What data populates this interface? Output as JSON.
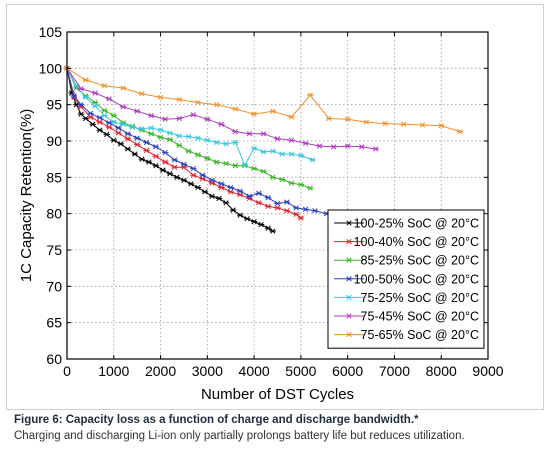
{
  "figure": {
    "caption_title": "Figure 6: Capacity loss as a function of charge and discharge bandwidth.*",
    "caption_text": "Charging and discharging Li-ion only partially prolongs battery life but reduces utilization."
  },
  "chart_data": {
    "type": "line",
    "title": "",
    "xlabel": "Number of DST Cycles",
    "ylabel": "1C Capacity Retention(%)",
    "xlim": [
      0,
      9000
    ],
    "ylim": [
      60,
      105
    ],
    "xticks": [
      0,
      1000,
      2000,
      3000,
      4000,
      5000,
      6000,
      7000,
      8000,
      9000
    ],
    "yticks": [
      60,
      65,
      70,
      75,
      80,
      85,
      90,
      95,
      100,
      105
    ],
    "grid": true,
    "legend_position": "bottom-right",
    "series": [
      {
        "name": "100-25% SoC @ 20°C",
        "color": "#000000",
        "marker": "asterisk",
        "x": [
          0,
          100,
          200,
          300,
          400,
          550,
          700,
          850,
          1000,
          1150,
          1300,
          1450,
          1600,
          1750,
          1900,
          2050,
          2200,
          2350,
          2500,
          2650,
          2800,
          2950,
          3100,
          3250,
          3400,
          3550,
          3700,
          3850,
          4000,
          4150,
          4300,
          4400
        ],
        "y": [
          100,
          96.6,
          95,
          93.7,
          93.1,
          92.3,
          91.5,
          90.9,
          90.1,
          89.6,
          88.9,
          88.2,
          87.5,
          87.1,
          86.6,
          86,
          85.5,
          85,
          84.6,
          84.1,
          83.6,
          83,
          82.4,
          82.1,
          81.5,
          80.5,
          79.8,
          79.3,
          78.9,
          78.5,
          78,
          77.6
        ]
      },
      {
        "name": "100-40% SoC @ 20°C",
        "color": "#e8202a",
        "marker": "asterisk",
        "x": [
          0,
          150,
          300,
          500,
          700,
          900,
          1100,
          1300,
          1500,
          1700,
          1900,
          2100,
          2300,
          2500,
          2700,
          2900,
          3100,
          3300,
          3500,
          3700,
          3900,
          4100,
          4300,
          4500,
          4700,
          4900,
          5000
        ],
        "y": [
          100,
          96,
          94.7,
          93.3,
          92.6,
          91.9,
          91.1,
          90.3,
          89.5,
          88.7,
          87.9,
          87.1,
          86.4,
          86.4,
          85.3,
          84.8,
          84.2,
          83.6,
          83,
          82.6,
          82.1,
          81.5,
          81,
          80.8,
          80.4,
          79.9,
          79.4
        ]
      },
      {
        "name": "85-25% SoC @ 20°C",
        "color": "#3cb52a",
        "marker": "asterisk",
        "x": [
          0,
          200,
          400,
          600,
          800,
          1000,
          1200,
          1400,
          1600,
          1800,
          2000,
          2200,
          2400,
          2600,
          2800,
          3000,
          3200,
          3400,
          3600,
          3800,
          4000,
          4200,
          4400,
          4600,
          4800,
          5000,
          5200
        ],
        "y": [
          100,
          97.3,
          96.2,
          95.3,
          94.2,
          93.5,
          92.5,
          92,
          91.5,
          91,
          90.5,
          90.2,
          89.4,
          88.6,
          88.1,
          87.6,
          87.1,
          86.9,
          86.6,
          86.6,
          86.2,
          85.8,
          85,
          84.7,
          84.2,
          84,
          83.5
        ]
      },
      {
        "name": "100-50% SoC @ 20°C",
        "color": "#2a3fbf",
        "marker": "asterisk",
        "x": [
          0,
          150,
          300,
          500,
          700,
          900,
          1100,
          1300,
          1500,
          1700,
          1900,
          2100,
          2300,
          2500,
          2700,
          2900,
          3100,
          3300,
          3500,
          3700,
          3900,
          4100,
          4300,
          4500,
          4700,
          4900,
          5100,
          5300,
          5550
        ],
        "y": [
          100,
          96.2,
          95,
          93.8,
          93.2,
          92.5,
          91.8,
          91,
          90.4,
          89.8,
          89.2,
          88.4,
          87.4,
          86.8,
          86.2,
          85.3,
          84.6,
          84.1,
          83.6,
          83.1,
          82.4,
          82.8,
          82.2,
          81.4,
          81.6,
          80.8,
          80.6,
          80.4,
          80
        ]
      },
      {
        "name": "75-25% SoC @ 20°C",
        "color": "#39c9e0",
        "marker": "asterisk",
        "x": [
          0,
          200,
          400,
          600,
          800,
          1000,
          1200,
          1400,
          1600,
          1800,
          2000,
          2200,
          2400,
          2600,
          2800,
          3000,
          3200,
          3400,
          3600,
          3800,
          4000,
          4200,
          4400,
          4600,
          4800,
          5000,
          5250
        ],
        "y": [
          100,
          97.6,
          96,
          94.8,
          93.5,
          92.6,
          92.3,
          91.9,
          91.7,
          91.8,
          91.5,
          91.1,
          90.7,
          90.6,
          90.4,
          90.1,
          89.8,
          89.6,
          89.8,
          86.7,
          89,
          88.5,
          88.6,
          88.2,
          88.2,
          88,
          87.4
        ]
      },
      {
        "name": "75-45% SoC @ 20°C",
        "color": "#b03cc0",
        "marker": "asterisk",
        "x": [
          0,
          300,
          600,
          900,
          1200,
          1500,
          1800,
          2100,
          2400,
          2700,
          3000,
          3300,
          3600,
          3900,
          4200,
          4500,
          4800,
          5100,
          5400,
          5700,
          6000,
          6300,
          6600
        ],
        "y": [
          100,
          97.2,
          96.6,
          95.8,
          94.7,
          94.1,
          93.5,
          93,
          93.1,
          93.6,
          93,
          92.3,
          91.3,
          91,
          91,
          90.3,
          90.1,
          89.7,
          89.3,
          89.2,
          89.3,
          89.2,
          88.9
        ]
      },
      {
        "name": "75-65% SoC @ 20°C",
        "color": "#f5902a",
        "marker": "asterisk",
        "x": [
          0,
          400,
          800,
          1200,
          1600,
          2000,
          2400,
          2800,
          3200,
          3600,
          4000,
          4400,
          4800,
          5200,
          5600,
          6000,
          6400,
          6800,
          7200,
          7600,
          8000,
          8400
        ],
        "y": [
          100,
          98.4,
          97.6,
          97.3,
          96.5,
          96,
          95.7,
          95.3,
          95,
          94.4,
          93.7,
          94.1,
          93.3,
          96.3,
          93.1,
          93,
          92.6,
          92.4,
          92.3,
          92.2,
          92.1,
          91.3
        ]
      }
    ]
  }
}
